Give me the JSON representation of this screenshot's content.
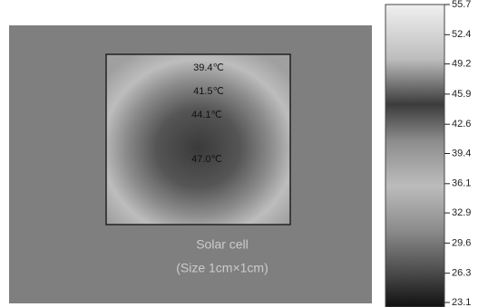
{
  "image": {
    "annotations": [
      "39.4℃",
      "41.5℃",
      "44.1℃",
      "47.0℃"
    ],
    "caption": [
      "Solar cell",
      "(Size 1cm×1cm)"
    ]
  },
  "colorbar": {
    "ticks": [
      55.7,
      52.4,
      49.2,
      45.9,
      42.6,
      39.4,
      36.1,
      32.9,
      29.6,
      26.3,
      23.1
    ]
  }
}
